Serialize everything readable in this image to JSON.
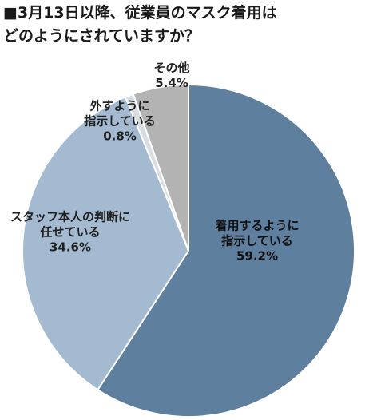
{
  "chart_data": {
    "type": "pie",
    "title_lines": [
      "■3月13日以降、従業員のマスク着用は",
      "どのようにされていますか？"
    ],
    "slices": [
      {
        "label_lines": [
          "着用するように",
          "指示している"
        ],
        "value": 59.2,
        "value_text": "59.2%",
        "color": "#5f7f9f"
      },
      {
        "label_lines": [
          "スタッフ本人の判断に",
          "任せている"
        ],
        "value": 34.6,
        "value_text": "34.6%",
        "color": "#a3bad1"
      },
      {
        "label_lines": [
          "外すように",
          "指示している"
        ],
        "value": 0.8,
        "value_text": "0.8%",
        "color": "#d8dde2"
      },
      {
        "label_lines": [
          "その他"
        ],
        "value": 5.4,
        "value_text": "5.4%",
        "color": "#b3b3b3"
      }
    ]
  }
}
